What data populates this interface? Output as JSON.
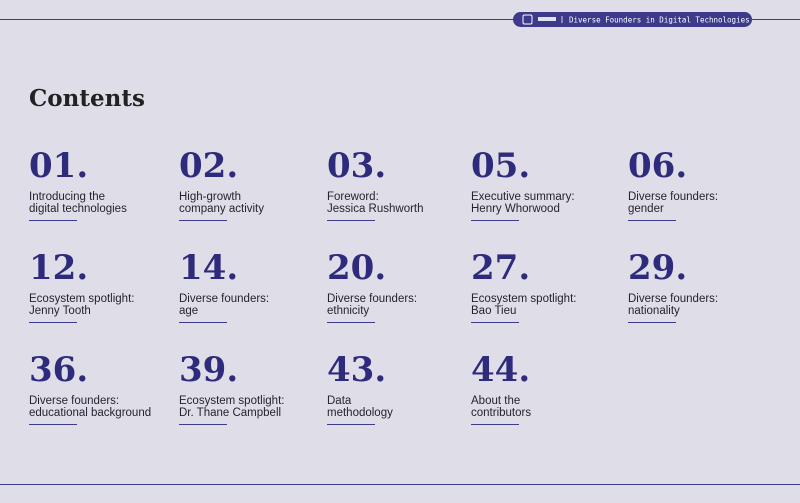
{
  "header": {
    "text": "Diverse Founders in Digital Technologies"
  },
  "title": "Contents",
  "items": [
    {
      "number": "01.",
      "lines": [
        "Introducing the",
        "digital technologies"
      ]
    },
    {
      "number": "02.",
      "lines": [
        "High-growth",
        "company activity"
      ]
    },
    {
      "number": "03.",
      "lines": [
        "Foreword:",
        "Jessica Rushworth"
      ]
    },
    {
      "number": "05.",
      "lines": [
        "Executive summary:",
        "Henry Whorwood"
      ]
    },
    {
      "number": "06.",
      "lines": [
        "Diverse founders:",
        "gender"
      ]
    },
    {
      "number": "12.",
      "lines": [
        "Ecosystem spotlight:",
        "Jenny Tooth"
      ]
    },
    {
      "number": "14.",
      "lines": [
        "Diverse founders:",
        "age"
      ]
    },
    {
      "number": "20.",
      "lines": [
        "Diverse founders:",
        "ethnicity"
      ]
    },
    {
      "number": "27.",
      "lines": [
        "Ecosystem spotlight:",
        "Bao Tieu"
      ]
    },
    {
      "number": "29.",
      "lines": [
        "Diverse founders:",
        "nationality"
      ]
    },
    {
      "number": "36.",
      "lines": [
        "Diverse founders:",
        "educational background"
      ]
    },
    {
      "number": "39.",
      "lines": [
        "Ecosystem spotlight:",
        "Dr. Thane Campbell"
      ]
    },
    {
      "number": "43.",
      "lines": [
        "Data",
        "methodology"
      ]
    },
    {
      "number": "44.",
      "lines": [
        "About the",
        "contributors"
      ]
    }
  ]
}
